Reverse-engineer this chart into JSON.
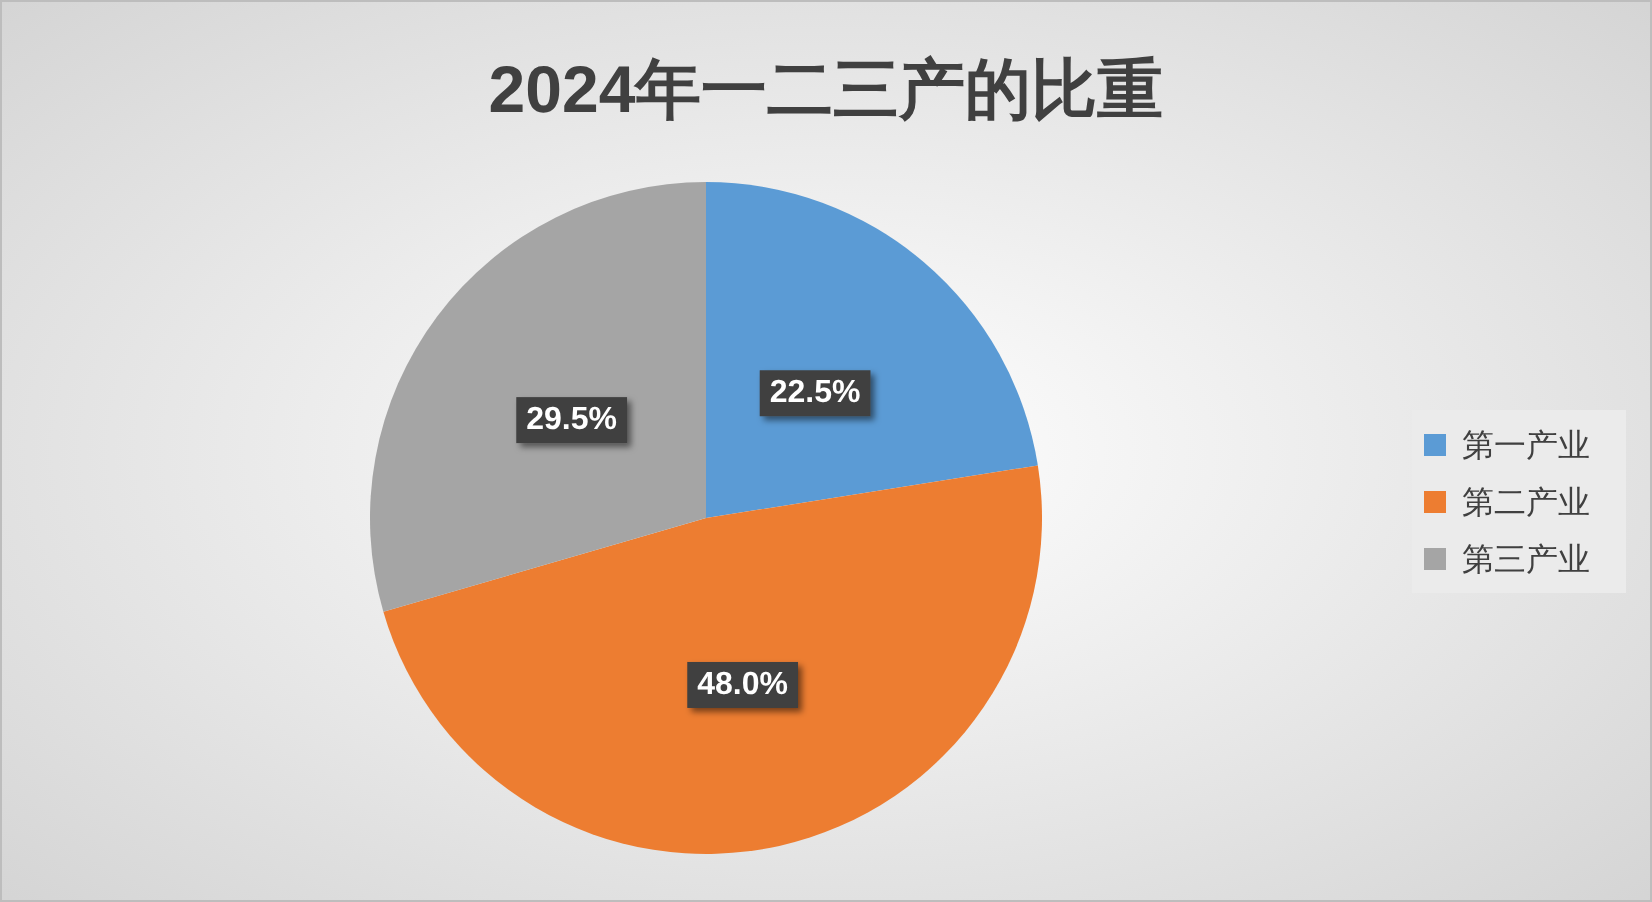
{
  "chart_data": {
    "type": "pie",
    "title": "2024年一二三产的比重",
    "categories": [
      "第一产业",
      "第二产业",
      "第三产业"
    ],
    "values": [
      22.5,
      48.0,
      29.5
    ],
    "value_labels": [
      "22.5%",
      "48.0%",
      "29.5%"
    ],
    "colors": [
      "#5b9bd5",
      "#ed7d31",
      "#a5a5a5"
    ],
    "legend": "right"
  }
}
